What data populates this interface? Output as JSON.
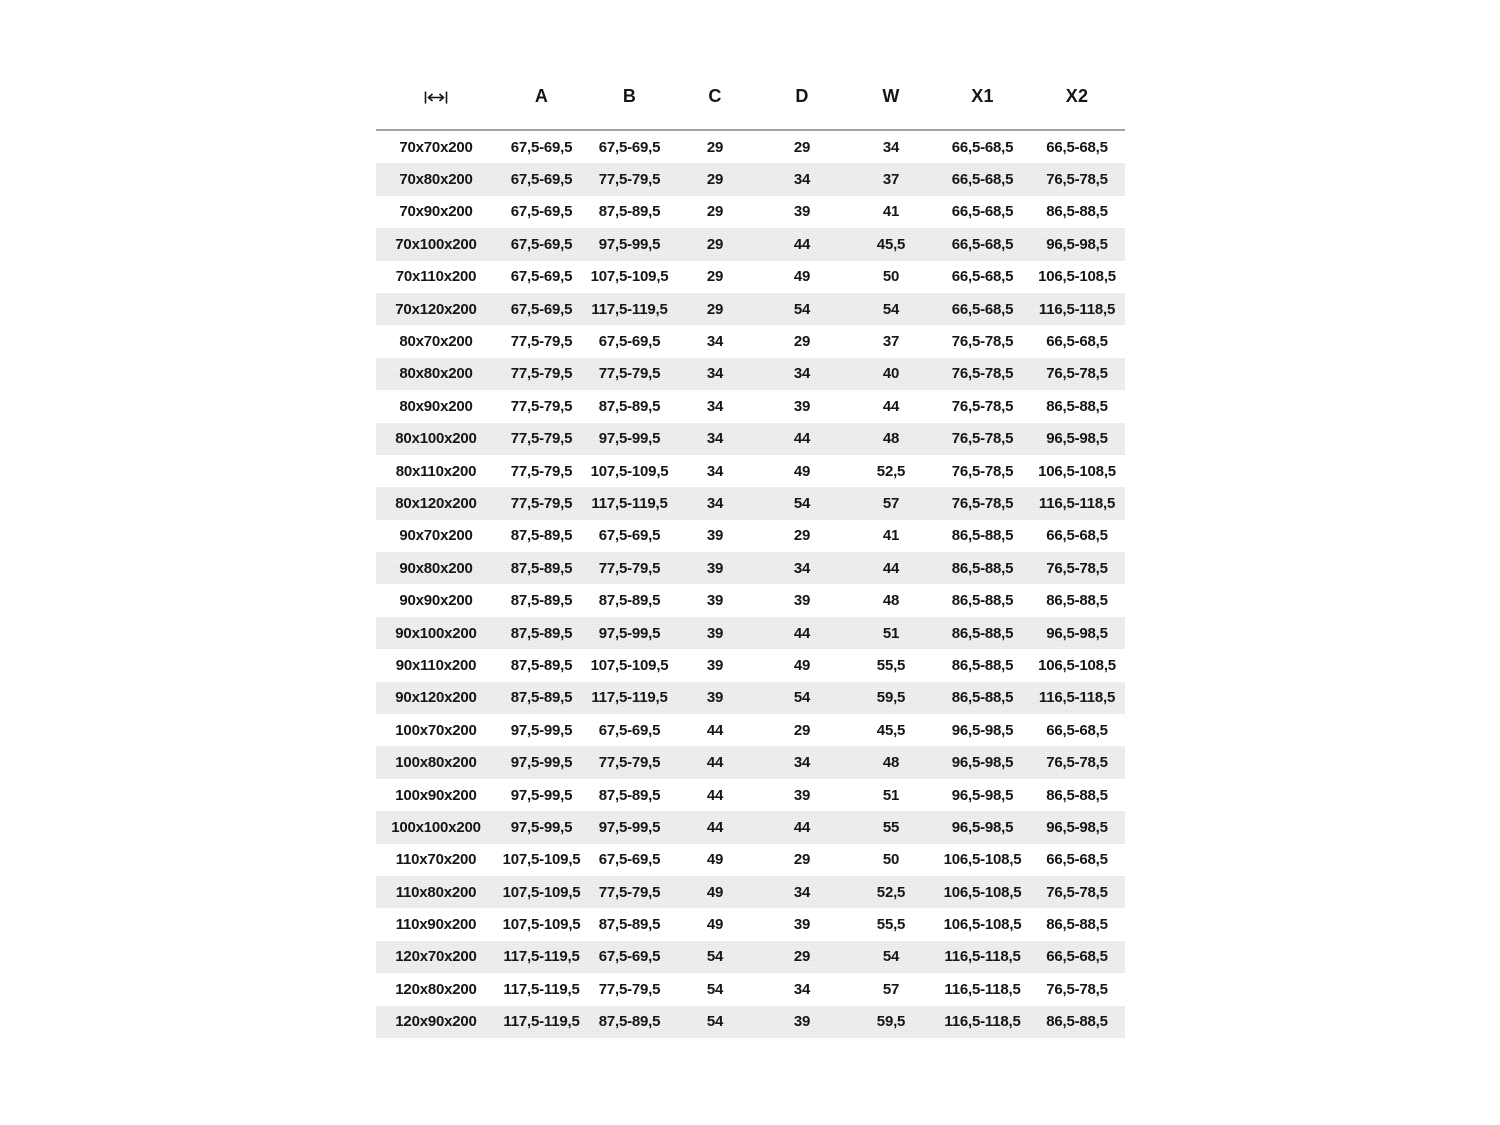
{
  "page": {
    "background": "#ffffff"
  },
  "table": {
    "header": {
      "size_icon": "width-dimension-icon",
      "columns": [
        "A",
        "B",
        "C",
        "D",
        "W",
        "X1",
        "X2"
      ]
    },
    "colors": {
      "stripe": "#ececec",
      "separator": "#a3a3a3",
      "text": "#161616"
    },
    "rows": [
      {
        "size": "70x70x200",
        "values": [
          "67,5-69,5",
          "67,5-69,5",
          "29",
          "29",
          "34",
          "66,5-68,5",
          "66,5-68,5"
        ]
      },
      {
        "size": "70x80x200",
        "values": [
          "67,5-69,5",
          "77,5-79,5",
          "29",
          "34",
          "37",
          "66,5-68,5",
          "76,5-78,5"
        ]
      },
      {
        "size": "70x90x200",
        "values": [
          "67,5-69,5",
          "87,5-89,5",
          "29",
          "39",
          "41",
          "66,5-68,5",
          "86,5-88,5"
        ]
      },
      {
        "size": "70x100x200",
        "values": [
          "67,5-69,5",
          "97,5-99,5",
          "29",
          "44",
          "45,5",
          "66,5-68,5",
          "96,5-98,5"
        ]
      },
      {
        "size": "70x110x200",
        "values": [
          "67,5-69,5",
          "107,5-109,5",
          "29",
          "49",
          "50",
          "66,5-68,5",
          "106,5-108,5"
        ]
      },
      {
        "size": "70x120x200",
        "values": [
          "67,5-69,5",
          "117,5-119,5",
          "29",
          "54",
          "54",
          "66,5-68,5",
          "116,5-118,5"
        ]
      },
      {
        "size": "80x70x200",
        "values": [
          "77,5-79,5",
          "67,5-69,5",
          "34",
          "29",
          "37",
          "76,5-78,5",
          "66,5-68,5"
        ]
      },
      {
        "size": "80x80x200",
        "values": [
          "77,5-79,5",
          "77,5-79,5",
          "34",
          "34",
          "40",
          "76,5-78,5",
          "76,5-78,5"
        ]
      },
      {
        "size": "80x90x200",
        "values": [
          "77,5-79,5",
          "87,5-89,5",
          "34",
          "39",
          "44",
          "76,5-78,5",
          "86,5-88,5"
        ]
      },
      {
        "size": "80x100x200",
        "values": [
          "77,5-79,5",
          "97,5-99,5",
          "34",
          "44",
          "48",
          "76,5-78,5",
          "96,5-98,5"
        ]
      },
      {
        "size": "80x110x200",
        "values": [
          "77,5-79,5",
          "107,5-109,5",
          "34",
          "49",
          "52,5",
          "76,5-78,5",
          "106,5-108,5"
        ]
      },
      {
        "size": "80x120x200",
        "values": [
          "77,5-79,5",
          "117,5-119,5",
          "34",
          "54",
          "57",
          "76,5-78,5",
          "116,5-118,5"
        ]
      },
      {
        "size": "90x70x200",
        "values": [
          "87,5-89,5",
          "67,5-69,5",
          "39",
          "29",
          "41",
          "86,5-88,5",
          "66,5-68,5"
        ]
      },
      {
        "size": "90x80x200",
        "values": [
          "87,5-89,5",
          "77,5-79,5",
          "39",
          "34",
          "44",
          "86,5-88,5",
          "76,5-78,5"
        ]
      },
      {
        "size": "90x90x200",
        "values": [
          "87,5-89,5",
          "87,5-89,5",
          "39",
          "39",
          "48",
          "86,5-88,5",
          "86,5-88,5"
        ]
      },
      {
        "size": "90x100x200",
        "values": [
          "87,5-89,5",
          "97,5-99,5",
          "39",
          "44",
          "51",
          "86,5-88,5",
          "96,5-98,5"
        ]
      },
      {
        "size": "90x110x200",
        "values": [
          "87,5-89,5",
          "107,5-109,5",
          "39",
          "49",
          "55,5",
          "86,5-88,5",
          "106,5-108,5"
        ]
      },
      {
        "size": "90x120x200",
        "values": [
          "87,5-89,5",
          "117,5-119,5",
          "39",
          "54",
          "59,5",
          "86,5-88,5",
          "116,5-118,5"
        ]
      },
      {
        "size": "100x70x200",
        "values": [
          "97,5-99,5",
          "67,5-69,5",
          "44",
          "29",
          "45,5",
          "96,5-98,5",
          "66,5-68,5"
        ]
      },
      {
        "size": "100x80x200",
        "values": [
          "97,5-99,5",
          "77,5-79,5",
          "44",
          "34",
          "48",
          "96,5-98,5",
          "76,5-78,5"
        ]
      },
      {
        "size": "100x90x200",
        "values": [
          "97,5-99,5",
          "87,5-89,5",
          "44",
          "39",
          "51",
          "96,5-98,5",
          "86,5-88,5"
        ]
      },
      {
        "size": "100x100x200",
        "values": [
          "97,5-99,5",
          "97,5-99,5",
          "44",
          "44",
          "55",
          "96,5-98,5",
          "96,5-98,5"
        ]
      },
      {
        "size": "110x70x200",
        "values": [
          "107,5-109,5",
          "67,5-69,5",
          "49",
          "29",
          "50",
          "106,5-108,5",
          "66,5-68,5"
        ]
      },
      {
        "size": "110x80x200",
        "values": [
          "107,5-109,5",
          "77,5-79,5",
          "49",
          "34",
          "52,5",
          "106,5-108,5",
          "76,5-78,5"
        ]
      },
      {
        "size": "110x90x200",
        "values": [
          "107,5-109,5",
          "87,5-89,5",
          "49",
          "39",
          "55,5",
          "106,5-108,5",
          "86,5-88,5"
        ]
      },
      {
        "size": "120x70x200",
        "values": [
          "117,5-119,5",
          "67,5-69,5",
          "54",
          "29",
          "54",
          "116,5-118,5",
          "66,5-68,5"
        ]
      },
      {
        "size": "120x80x200",
        "values": [
          "117,5-119,5",
          "77,5-79,5",
          "54",
          "34",
          "57",
          "116,5-118,5",
          "76,5-78,5"
        ]
      },
      {
        "size": "120x90x200",
        "values": [
          "117,5-119,5",
          "87,5-89,5",
          "54",
          "39",
          "59,5",
          "116,5-118,5",
          "86,5-88,5"
        ]
      }
    ]
  }
}
